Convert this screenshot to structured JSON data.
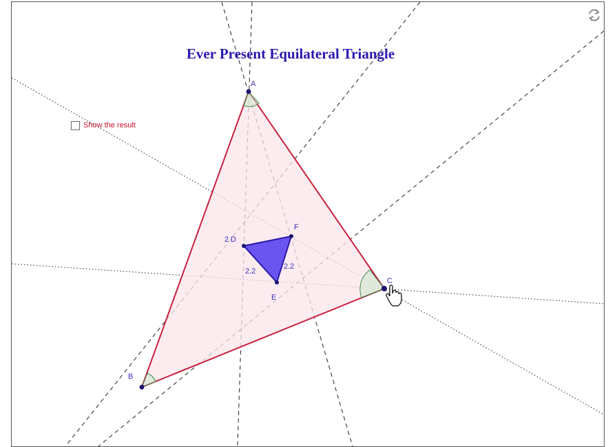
{
  "title": "Ever Present Equilateral Triangle",
  "checkbox": {
    "label": "Show the result"
  },
  "points": [
    {
      "label": "A"
    },
    {
      "label": "B"
    },
    {
      "label": "C"
    },
    {
      "label": "D"
    },
    {
      "label": "E"
    },
    {
      "label": "F"
    }
  ],
  "annotations": [
    "2",
    "2.2",
    "2.2"
  ]
}
